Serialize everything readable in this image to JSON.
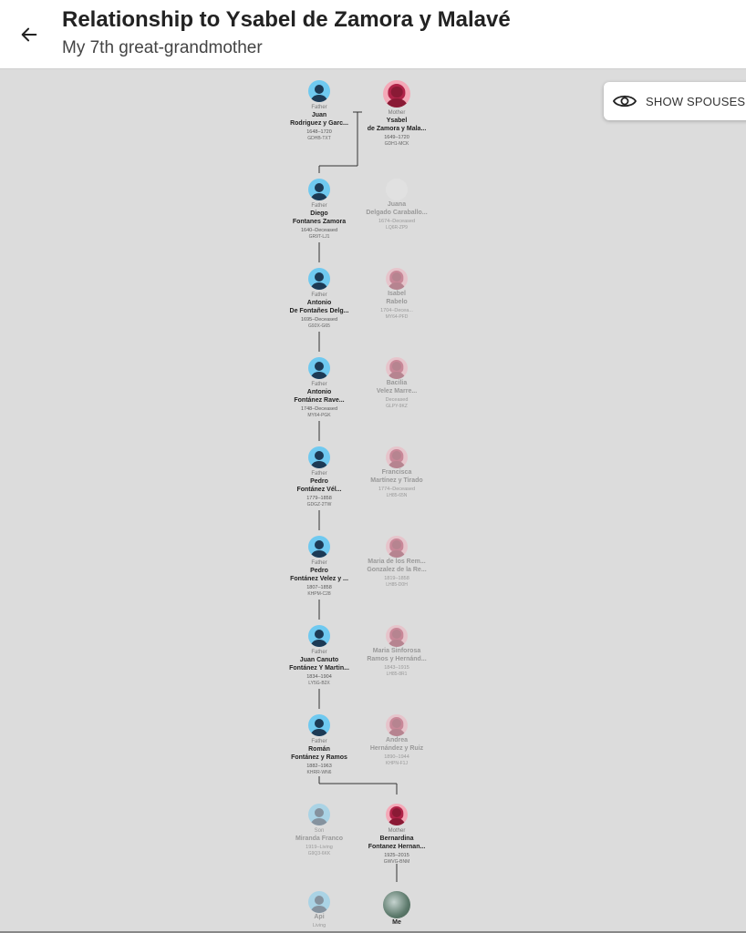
{
  "header": {
    "title": "Relationship to Ysabel de Zamora y Malavé",
    "subtitle": "My 7th great-grandmother"
  },
  "toolbar": {
    "show_spouses_label": "SHOW SPOUSES"
  },
  "icons": {
    "back": "arrow-left-icon",
    "eye": "eye-icon"
  },
  "tree": {
    "generations": [
      {
        "left": {
          "relation": "Father",
          "first": "Juan",
          "last": "Rodriguez y Garc...",
          "dates": "1648–1720",
          "id": "GDHB-TXT",
          "gender": "male",
          "faded": false
        },
        "right": {
          "relation": "Mother",
          "first": "Ysabel",
          "last": "de Zamora y Mala...",
          "dates": "1649–1720",
          "id": "GDH1-MCK",
          "gender": "female",
          "faded": false
        }
      },
      {
        "left": {
          "relation": "Father",
          "first": "Diego",
          "last": "Fontanes Zamora",
          "dates": "1640–Deceased",
          "id": "GR9T-LJ1",
          "gender": "male",
          "faded": false
        },
        "right": {
          "relation": "",
          "first": "Juana",
          "last": "Delgado Caraballo...",
          "dates": "1674–Deceased",
          "id": "LQ6R-ZP9",
          "gender": "unknown",
          "faded": true
        }
      },
      {
        "left": {
          "relation": "Father",
          "first": "Antonio",
          "last": "De Fontañes Delg...",
          "dates": "1695–Deceased",
          "id": "G92X-G65",
          "gender": "male",
          "faded": false
        },
        "right": {
          "relation": "",
          "first": "Isabel",
          "last": "Rabelo",
          "dates": "1704–Decea...",
          "id": "MY64-PFD",
          "gender": "female",
          "faded": true
        }
      },
      {
        "left": {
          "relation": "Father",
          "first": "Antonio",
          "last": "Fontánez Rave...",
          "dates": "1748–Deceased",
          "id": "MY64-PGK",
          "gender": "male",
          "faded": false
        },
        "right": {
          "relation": "",
          "first": "Bacilia",
          "last": "Velez Marre...",
          "dates": "Deceased",
          "id": "GLPY-9KZ",
          "gender": "female",
          "faded": true
        }
      },
      {
        "left": {
          "relation": "Father",
          "first": "Pedro",
          "last": "Fontánez Vél...",
          "dates": "1779–1858",
          "id": "GDGZ-2TW",
          "gender": "male",
          "faded": false
        },
        "right": {
          "relation": "",
          "first": "Francisca",
          "last": "Martínez y Tirado",
          "dates": "1774–Deceased",
          "id": "LH85-65N",
          "gender": "female",
          "faded": true
        }
      },
      {
        "left": {
          "relation": "Father",
          "first": "Pedro",
          "last": "Fontánez Velez y ...",
          "dates": "1807–1858",
          "id": "KHPM-C28",
          "gender": "male",
          "faded": false
        },
        "right": {
          "relation": "",
          "first": "Maria de los Rem...",
          "last": "Gonzalez de la Re...",
          "dates": "1819–1858",
          "id": "LH85-D0H",
          "gender": "female",
          "faded": true
        }
      },
      {
        "left": {
          "relation": "Father",
          "first": "Juan Canuto",
          "last": "Fontánez Y Martin...",
          "dates": "1834–1904",
          "id": "LY5G-B2X",
          "gender": "male",
          "faded": false
        },
        "right": {
          "relation": "",
          "first": "Maria Sinforosa",
          "last": "Ramos y Hernánd...",
          "dates": "1843–1915",
          "id": "LH85-8R1",
          "gender": "female",
          "faded": true
        }
      },
      {
        "left": {
          "relation": "Father",
          "first": "Román",
          "last": "Fontánez y Ramos",
          "dates": "1882–1963",
          "id": "KHRR-WN6",
          "gender": "male",
          "faded": false
        },
        "right": {
          "relation": "",
          "first": "Andrea",
          "last": "Hernández y Ruiz",
          "dates": "1890–1944",
          "id": "KHPN-F1J",
          "gender": "female",
          "faded": true
        }
      },
      {
        "left": {
          "relation": "Son",
          "first": "Miranda Franco",
          "last": "",
          "dates": "1919–Living",
          "id": "G9Q3-6KK",
          "gender": "male",
          "faded": true
        },
        "right": {
          "relation": "Mother",
          "first": "Bernardina",
          "last": "Fontanez Hernan...",
          "dates": "1925–2015",
          "id": "GWVG-BNM",
          "gender": "female",
          "faded": false
        }
      },
      {
        "left": {
          "relation": "",
          "first": "Api",
          "last": "",
          "dates": "Living",
          "id": "",
          "gender": "male",
          "faded": true
        },
        "right": {
          "relation": "",
          "first": "Me",
          "last": "",
          "dates": "",
          "id": "",
          "gender": "photo",
          "faded": false
        }
      }
    ]
  }
}
